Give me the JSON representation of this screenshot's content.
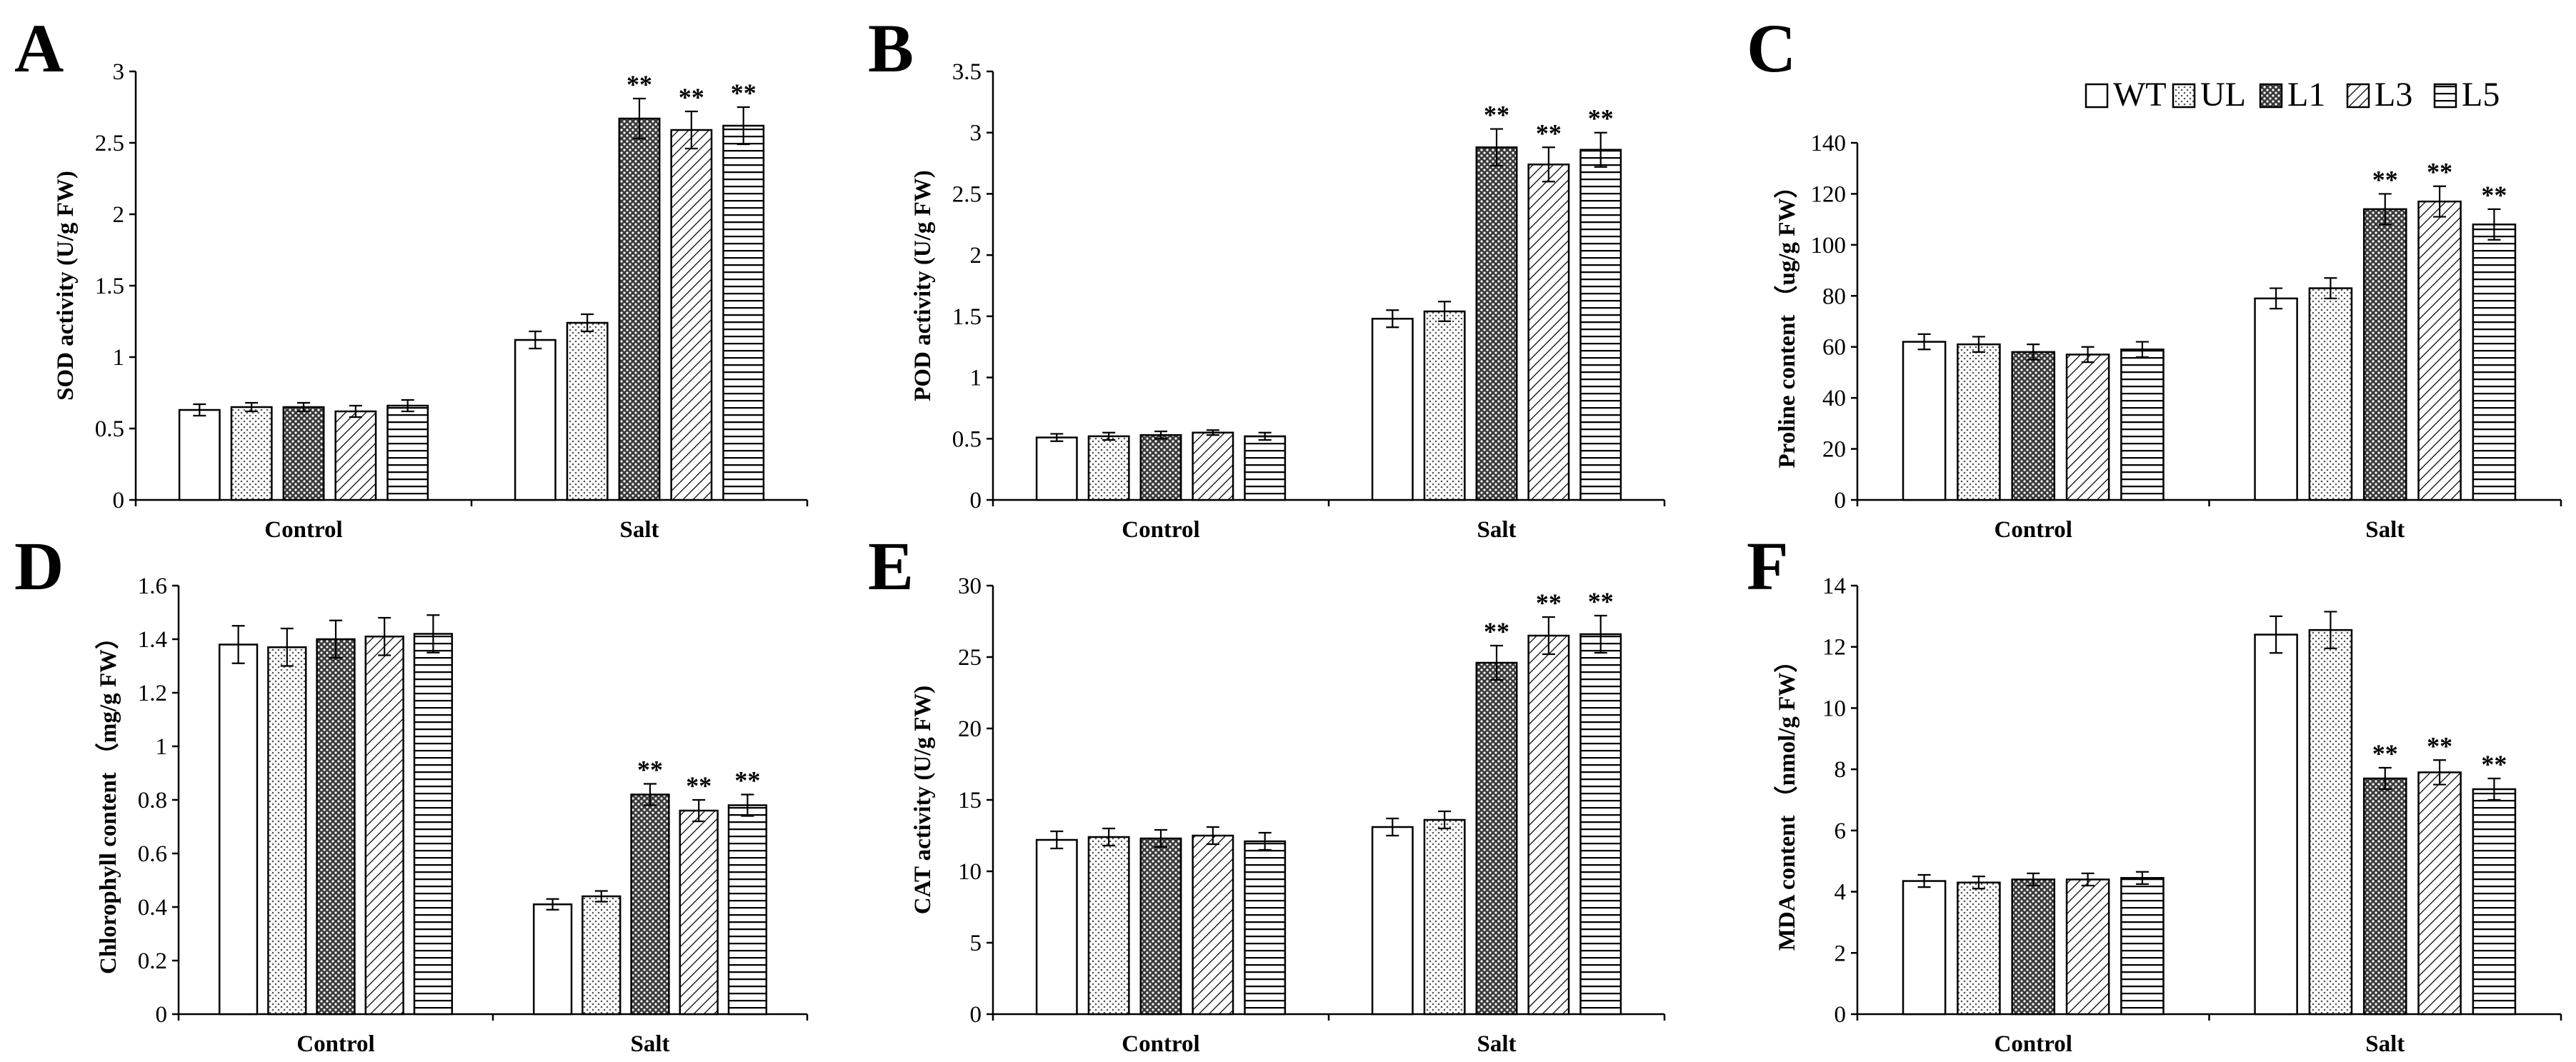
{
  "legend": [
    "WT",
    "UL",
    "L1",
    "L3",
    "L5"
  ],
  "chart_data": [
    {
      "type": "bar",
      "panel": "A",
      "categories": [
        "Control",
        "Salt"
      ],
      "ylabel": "SOD activity (U/g FW)",
      "ylim": [
        0,
        3
      ],
      "yticks": [
        "0",
        "0.5",
        "1",
        "1.5",
        "2",
        "2.5",
        "3"
      ],
      "series": [
        {
          "name": "WT",
          "values": [
            0.63,
            1.12
          ],
          "errors": [
            0.04,
            0.06
          ],
          "sig": [
            "",
            ""
          ]
        },
        {
          "name": "UL",
          "values": [
            0.65,
            1.24
          ],
          "errors": [
            0.03,
            0.06
          ],
          "sig": [
            "",
            ""
          ]
        },
        {
          "name": "L1",
          "values": [
            0.65,
            2.67
          ],
          "errors": [
            0.03,
            0.14
          ],
          "sig": [
            "",
            "**"
          ]
        },
        {
          "name": "L3",
          "values": [
            0.62,
            2.59
          ],
          "errors": [
            0.04,
            0.13
          ],
          "sig": [
            "",
            "**"
          ]
        },
        {
          "name": "L5",
          "values": [
            0.66,
            2.62
          ],
          "errors": [
            0.04,
            0.13
          ],
          "sig": [
            "",
            "**"
          ]
        }
      ]
    },
    {
      "type": "bar",
      "panel": "B",
      "categories": [
        "Control",
        "Salt"
      ],
      "ylabel": "POD activity (U/g FW)",
      "ylim": [
        0,
        3.5
      ],
      "yticks": [
        "0",
        "0.5",
        "1",
        "1.5",
        "2",
        "2.5",
        "3",
        "3.5"
      ],
      "series": [
        {
          "name": "WT",
          "values": [
            0.51,
            1.48
          ],
          "errors": [
            0.03,
            0.07
          ],
          "sig": [
            "",
            ""
          ]
        },
        {
          "name": "UL",
          "values": [
            0.52,
            1.54
          ],
          "errors": [
            0.03,
            0.08
          ],
          "sig": [
            "",
            ""
          ]
        },
        {
          "name": "L1",
          "values": [
            0.53,
            2.88
          ],
          "errors": [
            0.03,
            0.15
          ],
          "sig": [
            "",
            "**"
          ]
        },
        {
          "name": "L3",
          "values": [
            0.55,
            2.74
          ],
          "errors": [
            0.02,
            0.14
          ],
          "sig": [
            "",
            "**"
          ]
        },
        {
          "name": "L5",
          "values": [
            0.52,
            2.86
          ],
          "errors": [
            0.03,
            0.14
          ],
          "sig": [
            "",
            "**"
          ]
        }
      ]
    },
    {
      "type": "bar",
      "panel": "C",
      "categories": [
        "Control",
        "Salt"
      ],
      "ylabel": "Proline content （ug/g FW）",
      "ylim": [
        0,
        140
      ],
      "yticks": [
        "0",
        "20",
        "40",
        "60",
        "80",
        "100",
        "120",
        "140"
      ],
      "series": [
        {
          "name": "WT",
          "values": [
            62,
            79
          ],
          "errors": [
            3,
            4
          ],
          "sig": [
            "",
            ""
          ]
        },
        {
          "name": "UL",
          "values": [
            61,
            83
          ],
          "errors": [
            3,
            4
          ],
          "sig": [
            "",
            ""
          ]
        },
        {
          "name": "L1",
          "values": [
            58,
            114
          ],
          "errors": [
            3,
            6
          ],
          "sig": [
            "",
            "**"
          ]
        },
        {
          "name": "L3",
          "values": [
            57,
            117
          ],
          "errors": [
            3,
            6
          ],
          "sig": [
            "",
            "**"
          ]
        },
        {
          "name": "L5",
          "values": [
            59,
            108
          ],
          "errors": [
            3,
            6
          ],
          "sig": [
            "",
            "**"
          ]
        }
      ]
    },
    {
      "type": "bar",
      "panel": "D",
      "categories": [
        "Control",
        "Salt"
      ],
      "ylabel": "Chlorophyll content （mg/g FW）",
      "ylim": [
        0,
        1.6
      ],
      "yticks": [
        "0",
        "0.2",
        "0.4",
        "0.6",
        "0.8",
        "1",
        "1.2",
        "1.4",
        "1.6"
      ],
      "series": [
        {
          "name": "WT",
          "values": [
            1.38,
            0.41
          ],
          "errors": [
            0.07,
            0.02
          ],
          "sig": [
            "",
            ""
          ]
        },
        {
          "name": "UL",
          "values": [
            1.37,
            0.44
          ],
          "errors": [
            0.07,
            0.02
          ],
          "sig": [
            "",
            ""
          ]
        },
        {
          "name": "L1",
          "values": [
            1.4,
            0.82
          ],
          "errors": [
            0.07,
            0.04
          ],
          "sig": [
            "",
            "**"
          ]
        },
        {
          "name": "L3",
          "values": [
            1.41,
            0.76
          ],
          "errors": [
            0.07,
            0.04
          ],
          "sig": [
            "",
            "**"
          ]
        },
        {
          "name": "L5",
          "values": [
            1.42,
            0.78
          ],
          "errors": [
            0.07,
            0.04
          ],
          "sig": [
            "",
            "**"
          ]
        }
      ]
    },
    {
      "type": "bar",
      "panel": "E",
      "categories": [
        "Control",
        "Salt"
      ],
      "ylabel": "CAT activity (U/g FW)",
      "ylim": [
        0,
        30
      ],
      "yticks": [
        "0",
        "5",
        "10",
        "15",
        "20",
        "25",
        "30"
      ],
      "series": [
        {
          "name": "WT",
          "values": [
            12.2,
            13.1
          ],
          "errors": [
            0.6,
            0.6
          ],
          "sig": [
            "",
            ""
          ]
        },
        {
          "name": "UL",
          "values": [
            12.4,
            13.6
          ],
          "errors": [
            0.6,
            0.6
          ],
          "sig": [
            "",
            ""
          ]
        },
        {
          "name": "L1",
          "values": [
            12.3,
            24.6
          ],
          "errors": [
            0.6,
            1.2
          ],
          "sig": [
            "",
            "**"
          ]
        },
        {
          "name": "L3",
          "values": [
            12.5,
            26.5
          ],
          "errors": [
            0.6,
            1.3
          ],
          "sig": [
            "",
            "**"
          ]
        },
        {
          "name": "L5",
          "values": [
            12.1,
            26.6
          ],
          "errors": [
            0.6,
            1.3
          ],
          "sig": [
            "",
            "**"
          ]
        }
      ]
    },
    {
      "type": "bar",
      "panel": "F",
      "categories": [
        "Control",
        "Salt"
      ],
      "ylabel": "MDA content （nmol/g FW）",
      "ylim": [
        0,
        14
      ],
      "yticks": [
        "0",
        "2",
        "4",
        "6",
        "8",
        "10",
        "12",
        "14"
      ],
      "series": [
        {
          "name": "WT",
          "values": [
            4.35,
            12.4
          ],
          "errors": [
            0.2,
            0.6
          ],
          "sig": [
            "",
            ""
          ]
        },
        {
          "name": "UL",
          "values": [
            4.3,
            12.55
          ],
          "errors": [
            0.2,
            0.6
          ],
          "sig": [
            "",
            ""
          ]
        },
        {
          "name": "L1",
          "values": [
            4.4,
            7.7
          ],
          "errors": [
            0.2,
            0.35
          ],
          "sig": [
            "",
            "**"
          ]
        },
        {
          "name": "L3",
          "values": [
            4.4,
            7.9
          ],
          "errors": [
            0.2,
            0.4
          ],
          "sig": [
            "",
            "**"
          ]
        },
        {
          "name": "L5",
          "values": [
            4.45,
            7.35
          ],
          "errors": [
            0.2,
            0.35
          ],
          "sig": [
            "",
            "**"
          ]
        }
      ]
    }
  ]
}
